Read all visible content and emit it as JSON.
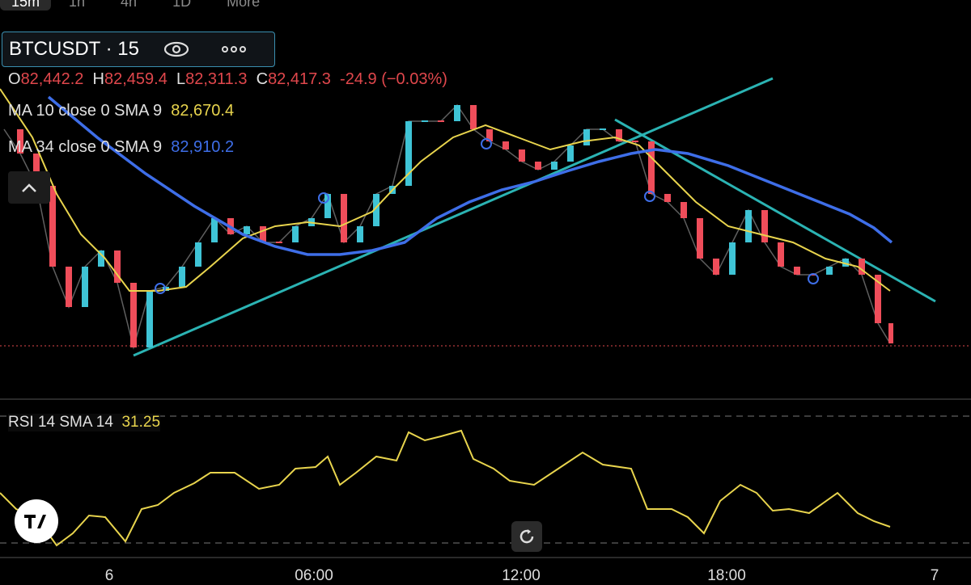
{
  "tabs": [
    "15m",
    "1h",
    "4h",
    "1D",
    "More"
  ],
  "symbol": {
    "name": "BTCUSDT · 15"
  },
  "ohlc": {
    "o_label": "O",
    "o": "82,442.2",
    "h_label": "H",
    "h": "82,459.4",
    "l_label": "L",
    "l": "82,311.3",
    "c_label": "C",
    "c": "82,417.3",
    "change": "-24.9 (−0.03%)"
  },
  "indicators": [
    {
      "label": "MA 10 close 0 SMA 9",
      "value": "82,670.4"
    },
    {
      "label": "MA 34 close 0 SMA 9",
      "value": "82,910.2"
    }
  ],
  "rsi": {
    "label": "RSI 14 SMA 14",
    "value": "31.25"
  },
  "time_axis": [
    "6",
    "06:00",
    "12:00",
    "18:00",
    "7"
  ]
}
